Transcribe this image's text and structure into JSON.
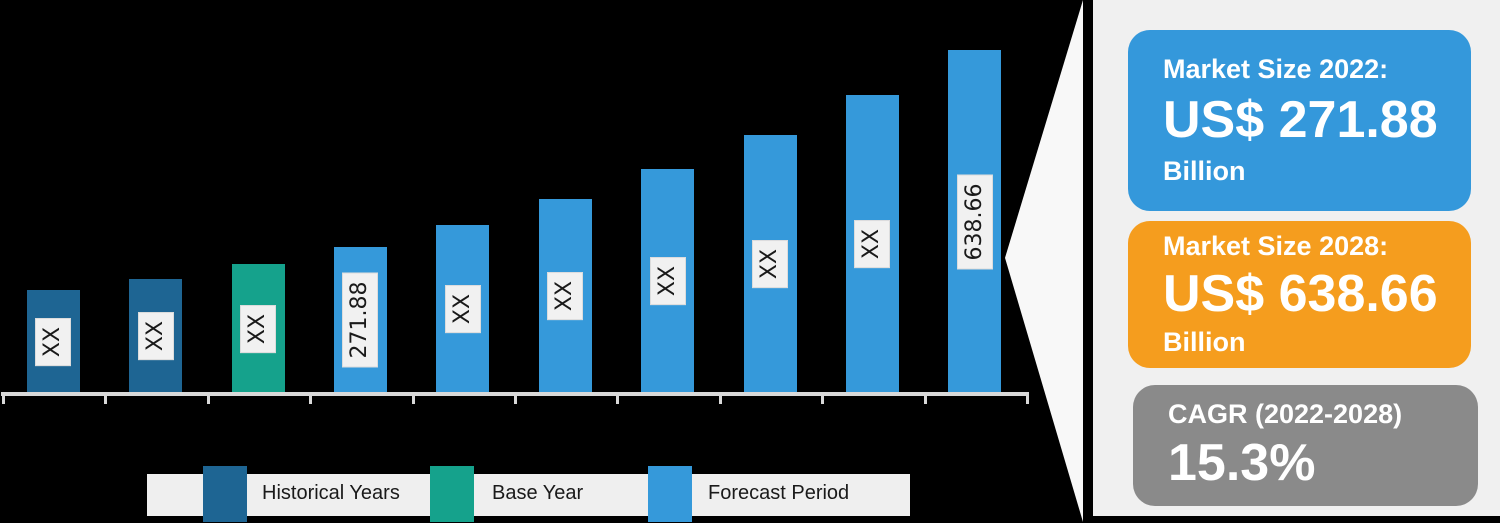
{
  "background_color": "#000000",
  "chart_data": {
    "type": "bar",
    "title": "",
    "x_axis_labels_visible": false,
    "legend_position": "bottom",
    "axis_color": "#D9D9D9",
    "label_box_bg": "#F1F1F1",
    "colors": {
      "historical": "#1E6593",
      "base": "#15A28C",
      "forecast": "#3599DA"
    },
    "value_scale_max": 638.66,
    "bars": [
      {
        "label": "XX",
        "segment": "historical",
        "estimated_value": 191
      },
      {
        "label": "XX",
        "segment": "historical",
        "estimated_value": 213
      },
      {
        "label": "XX",
        "segment": "base",
        "estimated_value": 241
      },
      {
        "label": "271.88",
        "segment": "forecast",
        "estimated_value": 271.88
      },
      {
        "label": "XX",
        "segment": "forecast",
        "estimated_value": 313.5
      },
      {
        "label": "XX",
        "segment": "forecast",
        "estimated_value": 361.4
      },
      {
        "label": "XX",
        "segment": "forecast",
        "estimated_value": 416.7
      },
      {
        "label": "XX",
        "segment": "forecast",
        "estimated_value": 480.5
      },
      {
        "label": "XX",
        "segment": "forecast",
        "estimated_value": 554.0
      },
      {
        "label": "638.66",
        "segment": "forecast",
        "estimated_value": 638.66
      }
    ],
    "legend": [
      {
        "label": "Historical Years",
        "color": "#1E6593"
      },
      {
        "label": "Base Year",
        "color": "#15A28C"
      },
      {
        "label": "Forecast Period",
        "color": "#3599DA"
      }
    ]
  },
  "callout": {
    "arrow_color": "#F8F8F8"
  },
  "panel": {
    "bg": "#F0F0F0",
    "cards": [
      {
        "title": "Market Size 2022:",
        "value": "US$ 271.88",
        "unit": "Billion",
        "bg": "#3498DB"
      },
      {
        "title": "Market Size 2028:",
        "value": "US$ 638.66",
        "unit": "Billion",
        "bg": "#F59D1E"
      },
      {
        "title": "CAGR (2022-2028)",
        "value": "15.3%",
        "unit": "",
        "bg": "#8A8A8A"
      }
    ]
  }
}
